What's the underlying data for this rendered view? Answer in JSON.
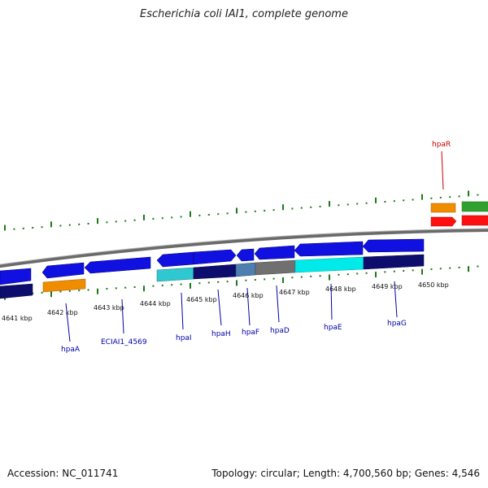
{
  "title": "Escherichia coli IAI1, complete genome",
  "footer": {
    "accession": "Accession: NC_011741",
    "stats": "Topology: circular; Length: 4,700,560 bp; Genes: 4,546"
  },
  "colors": {
    "blue_gene": "#1010e0",
    "navy_gene": "#0d0d6e",
    "orange_gene": "#f08c00",
    "cyan_gene": "#00eaea",
    "teal_gene": "#30c8d0",
    "gray_gene": "#707070",
    "steel_gene": "#4d80b0",
    "red_gene": "#ff1010",
    "green_gene": "#30a030",
    "backbone": "#808080",
    "tick": "#1a7a1a",
    "label_blue": "#0000aa",
    "label_red": "#cc0000"
  },
  "scale_labels": [
    "4641 kbp",
    "4642 kbp",
    "4643 kbp",
    "4644 kbp",
    "4645 kbp",
    "4646 kbp",
    "4647 kbp",
    "4648 kbp",
    "4649 kbp",
    "4650 kbp"
  ],
  "gene_labels": [
    {
      "name": "hpaA",
      "color": "label_blue"
    },
    {
      "name": "ECIAI1_4569",
      "color": "label_blue"
    },
    {
      "name": "hpaI",
      "color": "label_blue"
    },
    {
      "name": "hpaH",
      "color": "label_blue"
    },
    {
      "name": "hpaF",
      "color": "label_blue"
    },
    {
      "name": "hpaD",
      "color": "label_blue"
    },
    {
      "name": "hpaE",
      "color": "label_blue"
    },
    {
      "name": "hpaG",
      "color": "label_blue"
    },
    {
      "name": "hpaR",
      "color": "label_red"
    }
  ]
}
